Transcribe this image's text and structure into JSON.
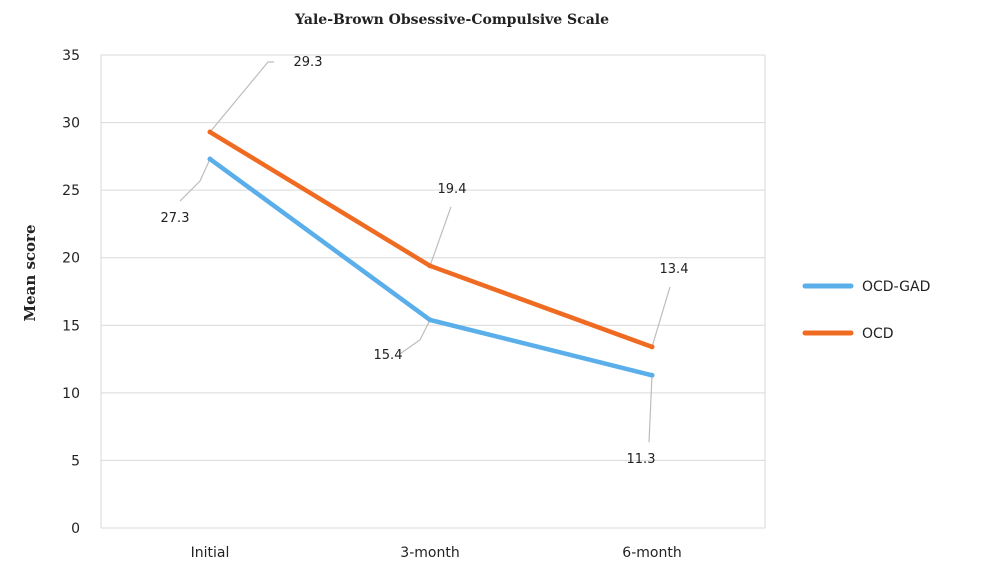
{
  "chart_data": {
    "type": "line",
    "title": "Yale-Brown Obsessive-Compulsive Scale",
    "xlabel": "",
    "ylabel": "Mean score",
    "categories": [
      "Initial",
      "3-month",
      "6-month"
    ],
    "ylim": [
      0,
      35
    ],
    "yticks": [
      0,
      5,
      10,
      15,
      20,
      25,
      30,
      35
    ],
    "grid": true,
    "legend_position": "right",
    "series": [
      {
        "name": "OCD-GAD",
        "values": [
          27.3,
          15.4,
          11.3
        ],
        "labels": [
          "27.3",
          "15.4",
          "11.3"
        ],
        "color": "#5aaeea"
      },
      {
        "name": "OCD",
        "values": [
          29.3,
          19.4,
          13.4
        ],
        "labels": [
          "29.3",
          "19.4",
          "13.4"
        ],
        "color": "#ef6b22"
      }
    ]
  }
}
